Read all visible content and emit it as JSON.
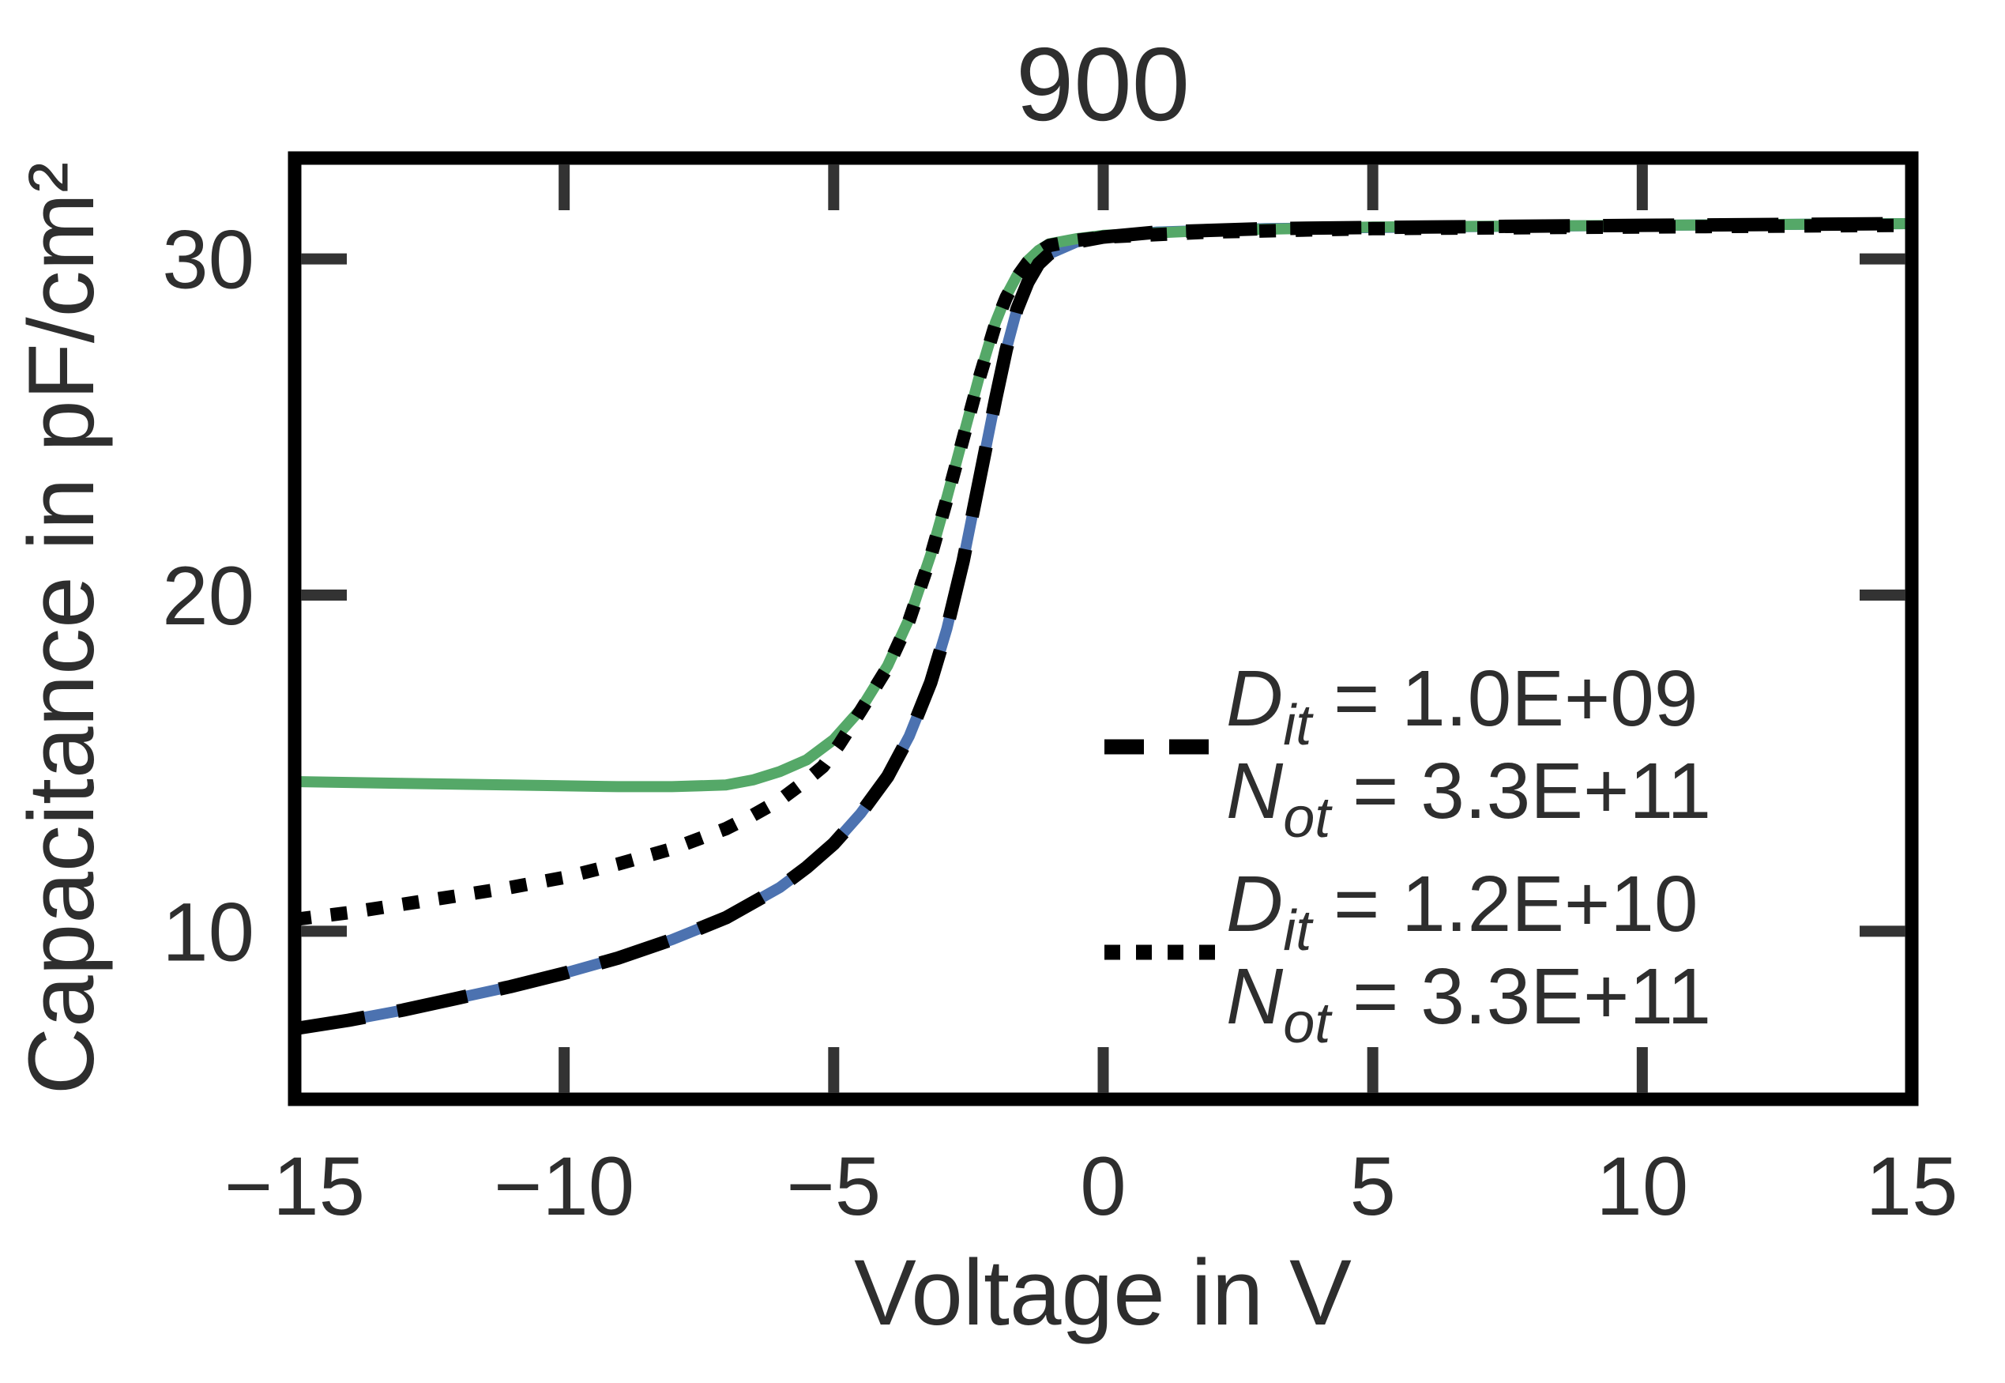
{
  "title": "900",
  "colors": {
    "green": "#55a868",
    "blue": "#4c72b0",
    "black": "#000000",
    "text": "#2e2e2e",
    "tick": "#333333",
    "spine": "#000000",
    "background": "#ffffff"
  },
  "axes": {
    "x": {
      "label": "Voltage in V",
      "tick_values": [
        -15,
        -10,
        -5,
        0,
        5,
        10,
        15
      ],
      "tick_labels": [
        "−15",
        "−10",
        "−5",
        "0",
        "5",
        "10",
        "15"
      ],
      "mark_values": [
        -10,
        -5,
        0,
        5,
        10
      ]
    },
    "y": {
      "label": "Capacitance in pF/cm²",
      "tick_values": [
        10,
        20,
        30
      ],
      "tick_labels": [
        "10",
        "20",
        "30"
      ],
      "mark_values": [
        10,
        20,
        30
      ]
    }
  },
  "legend": {
    "entries": [
      {
        "swatch": "dashed",
        "lines": [
          {
            "var": "D",
            "sub": "it",
            "rest": " = 1.0E+09"
          },
          {
            "var": "N",
            "sub": "ot",
            "rest": " = 3.3E+11"
          }
        ]
      },
      {
        "swatch": "dotted",
        "lines": [
          {
            "var": "D",
            "sub": "it",
            "rest": " = 1.2E+10"
          },
          {
            "var": "N",
            "sub": "ot",
            "rest": " = 3.3E+11"
          }
        ]
      }
    ]
  },
  "chart_data": {
    "type": "line",
    "title": "900",
    "xlabel": "Voltage in V",
    "ylabel": "Capacitance in pF/cm²",
    "xlim": [
      -15,
      15
    ],
    "ylim": [
      5,
      33
    ],
    "x_ticks": [
      -15,
      -10,
      -5,
      0,
      5,
      10,
      15
    ],
    "y_ticks": [
      10,
      20,
      30
    ],
    "grid": false,
    "legend_position": "center right",
    "series": [
      {
        "name": "measurement-blue",
        "color": "#4c72b0",
        "style": "solid",
        "width": 14,
        "dash": null,
        "x": [
          -15,
          -14,
          -13,
          -12,
          -11,
          -10,
          -9,
          -8,
          -7,
          -6,
          -5.5,
          -5,
          -4.5,
          -4,
          -3.6,
          -3.2,
          -2.9,
          -2.6,
          -2.3,
          -2.0,
          -1.8,
          -1.6,
          -1.4,
          -1.2,
          -1.0,
          -0.5,
          0,
          1,
          3,
          6,
          10,
          15
        ],
        "y": [
          7.1,
          7.35,
          7.65,
          8.0,
          8.35,
          8.75,
          9.2,
          9.75,
          10.4,
          11.3,
          11.9,
          12.6,
          13.5,
          14.6,
          15.8,
          17.4,
          19.0,
          21.0,
          23.4,
          25.8,
          27.3,
          28.5,
          29.3,
          29.85,
          30.15,
          30.5,
          30.65,
          30.8,
          30.9,
          30.95,
          31.0,
          31.05
        ]
      },
      {
        "name": "measurement-green",
        "color": "#55a868",
        "style": "solid",
        "width": 14,
        "dash": null,
        "x": [
          -15,
          -13,
          -11,
          -9,
          -8,
          -7,
          -6.5,
          -6,
          -5.5,
          -5,
          -4.5,
          -4,
          -3.6,
          -3.2,
          -2.9,
          -2.6,
          -2.3,
          -2.0,
          -1.8,
          -1.6,
          -1.4,
          -1.2,
          -1.0,
          -0.5,
          0,
          2,
          5,
          10,
          15
        ],
        "y": [
          14.45,
          14.4,
          14.35,
          14.3,
          14.3,
          14.35,
          14.5,
          14.75,
          15.1,
          15.7,
          16.6,
          17.9,
          19.3,
          21.2,
          22.9,
          24.7,
          26.5,
          28.1,
          28.9,
          29.5,
          29.95,
          30.25,
          30.45,
          30.6,
          30.7,
          30.85,
          30.95,
          31.0,
          31.05
        ]
      },
      {
        "name": "fit-dashed-dit-1.0e09",
        "color": "#000000",
        "style": "dashed",
        "width": 17,
        "dash": [
          90,
          42
        ],
        "x": [
          -15,
          -14,
          -13,
          -12,
          -11,
          -10,
          -9,
          -8,
          -7,
          -6,
          -5.5,
          -5,
          -4.5,
          -4,
          -3.6,
          -3.2,
          -2.9,
          -2.6,
          -2.3,
          -2.0,
          -1.8,
          -1.6,
          -1.4,
          -1.2,
          -1.0,
          -0.5,
          0,
          1,
          3,
          6,
          10,
          15
        ],
        "y": [
          7.1,
          7.35,
          7.65,
          8.0,
          8.35,
          8.75,
          9.2,
          9.75,
          10.4,
          11.3,
          11.9,
          12.6,
          13.5,
          14.6,
          15.8,
          17.4,
          19.0,
          21.0,
          23.4,
          25.8,
          27.3,
          28.5,
          29.3,
          29.85,
          30.15,
          30.5,
          30.65,
          30.8,
          30.9,
          30.95,
          31.0,
          31.05
        ]
      },
      {
        "name": "fit-dotted-dit-1.2e10",
        "color": "#000000",
        "style": "dotted",
        "width": 17,
        "dash": [
          21,
          25
        ],
        "x": [
          -15,
          -14,
          -13,
          -12,
          -11,
          -10,
          -9,
          -8,
          -7,
          -6.5,
          -6,
          -5.5,
          -5.2,
          -4.9,
          -4.5,
          -4,
          -3.6,
          -3.2,
          -2.9,
          -2.6,
          -2.3,
          -2.0,
          -1.8,
          -1.6,
          -1.4,
          -1.2,
          -1.0,
          -0.5,
          0,
          2,
          5,
          10,
          15
        ],
        "y": [
          10.35,
          10.55,
          10.8,
          11.05,
          11.3,
          11.6,
          12.0,
          12.45,
          13.05,
          13.45,
          13.9,
          14.5,
          14.9,
          15.55,
          16.55,
          17.85,
          19.25,
          21.15,
          22.85,
          24.65,
          26.45,
          28.05,
          28.85,
          29.45,
          29.9,
          30.2,
          30.4,
          30.55,
          30.65,
          30.8,
          30.9,
          30.95,
          31.0
        ]
      }
    ]
  }
}
